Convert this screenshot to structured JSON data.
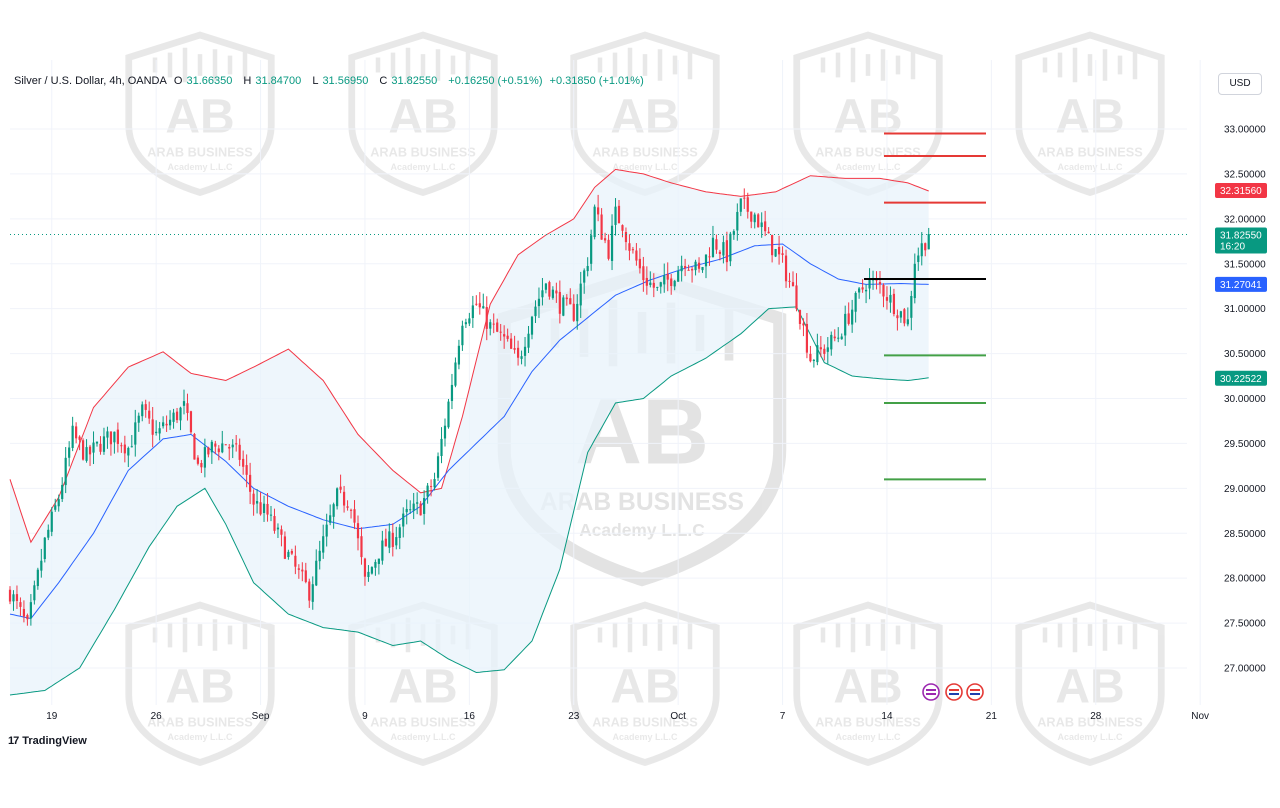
{
  "header": {
    "symbol": "Silver / U.S. Dollar, 4h, OANDA",
    "open_label": "O",
    "open": "31.66350",
    "high_label": "H",
    "high": "31.84700",
    "low_label": "L",
    "low": "31.56950",
    "close_label": "C",
    "close": "31.82550",
    "change": "+0.16250 (+0.51%)",
    "change2": "+0.31850 (+1.01%)"
  },
  "currency_button": "USD",
  "branding": {
    "tradingview": "TradingView"
  },
  "watermark": {
    "line1": "ARAB BUSINESS",
    "line2": "Academy L.L.C",
    "monogram": "AB"
  },
  "colors": {
    "up": "#089981",
    "down": "#f23645",
    "basis": "#2962ff",
    "upper": "#f23645",
    "lower": "#089981",
    "band_fill": "#e8f3fb",
    "level_red": "#e53935",
    "level_green": "#43a047",
    "level_black": "#000000",
    "last_price": "#089981",
    "upper_tag": "#f23645",
    "basis_tag": "#2962ff",
    "lower_tag": "#089981"
  },
  "chart_data": {
    "type": "candlestick",
    "interval": "4h",
    "ylim": [
      26.6,
      33.6
    ],
    "yticks": [
      27.0,
      27.5,
      28.0,
      28.5,
      29.0,
      29.5,
      30.0,
      30.5,
      31.0,
      31.5,
      32.0,
      32.5,
      33.0
    ],
    "ytick_labels": [
      "27.00000",
      "27.50000",
      "28.00000",
      "28.50000",
      "29.00000",
      "29.50000",
      "30.00000",
      "30.50000",
      "31.00000",
      "31.50000",
      "32.00000",
      "32.50000",
      "33.00000"
    ],
    "xticks": [
      {
        "label": "19",
        "bar": 12
      },
      {
        "label": "26",
        "bar": 42
      },
      {
        "label": "Sep",
        "bar": 72
      },
      {
        "label": "9",
        "bar": 102
      },
      {
        "label": "16",
        "bar": 132
      },
      {
        "label": "23",
        "bar": 162
      },
      {
        "label": "Oct",
        "bar": 192
      },
      {
        "label": "7",
        "bar": 222
      },
      {
        "label": "14",
        "bar": 252
      },
      {
        "label": "21",
        "bar": 282
      },
      {
        "label": "28",
        "bar": 312
      },
      {
        "label": "Nov",
        "bar": 342
      }
    ],
    "total_bars": 346,
    "close_anchors": [
      [
        0,
        27.85
      ],
      [
        5,
        27.45
      ],
      [
        10,
        28.4
      ],
      [
        14,
        28.9
      ],
      [
        18,
        29.6
      ],
      [
        22,
        29.35
      ],
      [
        26,
        29.5
      ],
      [
        30,
        29.6
      ],
      [
        34,
        29.45
      ],
      [
        38,
        29.85
      ],
      [
        42,
        29.6
      ],
      [
        46,
        29.75
      ],
      [
        50,
        29.9
      ],
      [
        54,
        29.25
      ],
      [
        58,
        29.45
      ],
      [
        62,
        29.5
      ],
      [
        66,
        29.35
      ],
      [
        70,
        28.85
      ],
      [
        74,
        28.7
      ],
      [
        78,
        28.4
      ],
      [
        82,
        28.1
      ],
      [
        86,
        27.85
      ],
      [
        90,
        28.4
      ],
      [
        94,
        28.9
      ],
      [
        98,
        28.85
      ],
      [
        102,
        27.95
      ],
      [
        106,
        28.3
      ],
      [
        110,
        28.45
      ],
      [
        114,
        28.7
      ],
      [
        118,
        28.8
      ],
      [
        122,
        29.1
      ],
      [
        126,
        29.95
      ],
      [
        130,
        30.9
      ],
      [
        134,
        31.05
      ],
      [
        138,
        30.8
      ],
      [
        142,
        30.65
      ],
      [
        146,
        30.4
      ],
      [
        150,
        30.95
      ],
      [
        154,
        31.3
      ],
      [
        158,
        31.05
      ],
      [
        162,
        30.95
      ],
      [
        166,
        31.55
      ],
      [
        168,
        32.1
      ],
      [
        170,
        31.85
      ],
      [
        172,
        31.65
      ],
      [
        174,
        32.05
      ],
      [
        176,
        31.95
      ],
      [
        178,
        31.7
      ],
      [
        182,
        31.35
      ],
      [
        186,
        31.2
      ],
      [
        190,
        31.35
      ],
      [
        194,
        31.55
      ],
      [
        198,
        31.4
      ],
      [
        202,
        31.75
      ],
      [
        206,
        31.6
      ],
      [
        210,
        32.15
      ],
      [
        214,
        32.05
      ],
      [
        218,
        31.75
      ],
      [
        222,
        31.5
      ],
      [
        226,
        31.1
      ],
      [
        230,
        30.45
      ],
      [
        234,
        30.55
      ],
      [
        238,
        30.7
      ],
      [
        242,
        31.0
      ],
      [
        246,
        31.3
      ],
      [
        250,
        31.25
      ],
      [
        254,
        31.05
      ],
      [
        258,
        30.85
      ],
      [
        260,
        31.55
      ],
      [
        264,
        31.83
      ]
    ],
    "candle_count": 265,
    "bollinger_upper_anchors": [
      [
        0,
        29.1
      ],
      [
        6,
        28.4
      ],
      [
        14,
        28.9
      ],
      [
        24,
        29.9
      ],
      [
        34,
        30.35
      ],
      [
        44,
        30.52
      ],
      [
        52,
        30.28
      ],
      [
        62,
        30.2
      ],
      [
        70,
        30.35
      ],
      [
        80,
        30.55
      ],
      [
        90,
        30.2
      ],
      [
        100,
        29.6
      ],
      [
        110,
        29.2
      ],
      [
        118,
        28.95
      ],
      [
        124,
        29.0
      ],
      [
        130,
        29.8
      ],
      [
        138,
        31.05
      ],
      [
        146,
        31.6
      ],
      [
        154,
        31.82
      ],
      [
        162,
        32.0
      ],
      [
        168,
        32.35
      ],
      [
        174,
        32.55
      ],
      [
        182,
        32.5
      ],
      [
        190,
        32.4
      ],
      [
        200,
        32.3
      ],
      [
        210,
        32.25
      ],
      [
        220,
        32.3
      ],
      [
        230,
        32.48
      ],
      [
        240,
        32.45
      ],
      [
        250,
        32.45
      ],
      [
        258,
        32.4
      ],
      [
        264,
        32.31
      ]
    ],
    "bollinger_basis_anchors": [
      [
        0,
        27.6
      ],
      [
        6,
        27.55
      ],
      [
        14,
        27.95
      ],
      [
        24,
        28.5
      ],
      [
        34,
        29.2
      ],
      [
        44,
        29.55
      ],
      [
        52,
        29.6
      ],
      [
        62,
        29.3
      ],
      [
        70,
        29.0
      ],
      [
        80,
        28.8
      ],
      [
        90,
        28.65
      ],
      [
        100,
        28.55
      ],
      [
        110,
        28.6
      ],
      [
        118,
        28.8
      ],
      [
        126,
        29.2
      ],
      [
        134,
        29.5
      ],
      [
        142,
        29.8
      ],
      [
        150,
        30.3
      ],
      [
        158,
        30.65
      ],
      [
        166,
        30.9
      ],
      [
        174,
        31.15
      ],
      [
        184,
        31.32
      ],
      [
        194,
        31.45
      ],
      [
        204,
        31.55
      ],
      [
        214,
        31.7
      ],
      [
        222,
        31.72
      ],
      [
        230,
        31.5
      ],
      [
        238,
        31.33
      ],
      [
        246,
        31.27
      ],
      [
        256,
        31.28
      ],
      [
        264,
        31.27
      ]
    ],
    "bollinger_lower_anchors": [
      [
        0,
        26.7
      ],
      [
        10,
        26.75
      ],
      [
        20,
        27.0
      ],
      [
        30,
        27.65
      ],
      [
        40,
        28.35
      ],
      [
        48,
        28.8
      ],
      [
        56,
        29.0
      ],
      [
        62,
        28.6
      ],
      [
        70,
        27.95
      ],
      [
        80,
        27.6
      ],
      [
        90,
        27.45
      ],
      [
        100,
        27.4
      ],
      [
        110,
        27.25
      ],
      [
        118,
        27.3
      ],
      [
        126,
        27.1
      ],
      [
        134,
        26.95
      ],
      [
        142,
        26.98
      ],
      [
        150,
        27.3
      ],
      [
        158,
        28.1
      ],
      [
        166,
        29.4
      ],
      [
        174,
        29.95
      ],
      [
        182,
        30.0
      ],
      [
        190,
        30.25
      ],
      [
        200,
        30.45
      ],
      [
        210,
        30.72
      ],
      [
        218,
        31.0
      ],
      [
        226,
        31.02
      ],
      [
        234,
        30.4
      ],
      [
        242,
        30.25
      ],
      [
        250,
        30.22
      ],
      [
        258,
        30.2
      ],
      [
        264,
        30.23
      ]
    ],
    "horizontal_levels": [
      {
        "price": 32.95,
        "color": "red"
      },
      {
        "price": 32.7,
        "color": "red"
      },
      {
        "price": 32.18,
        "color": "red"
      },
      {
        "price": 31.33,
        "color": "black"
      },
      {
        "price": 30.48,
        "color": "green"
      },
      {
        "price": 29.95,
        "color": "green"
      },
      {
        "price": 29.1,
        "color": "green"
      }
    ],
    "price_tags": [
      {
        "label": "32.31560",
        "price": 32.3156,
        "kind": "upper"
      },
      {
        "label": "31.82550",
        "sub": "16:20",
        "price": 31.8255,
        "kind": "last"
      },
      {
        "label": "31.27041",
        "price": 31.27041,
        "kind": "basis"
      },
      {
        "label": "30.22522",
        "price": 30.22522,
        "kind": "lower"
      }
    ]
  }
}
